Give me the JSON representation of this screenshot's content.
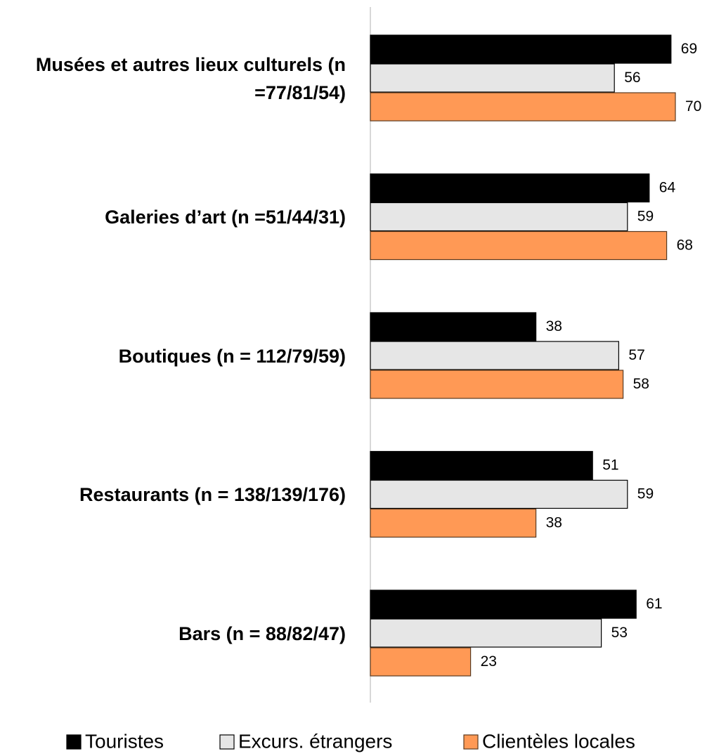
{
  "chart_data": {
    "type": "hbar",
    "categories": [
      "Musées et autres lieux culturels (n =77/81/54)",
      "Galeries d’art (n =51/44/31)",
      "Boutiques (n = 112/79/59)",
      "Restaurants (n = 138/139/176)",
      "Bars (n = 88/82/47)"
    ],
    "series": [
      {
        "name": "Touristes",
        "color": "#000000",
        "values": [
          69,
          64,
          38,
          51,
          61
        ]
      },
      {
        "name": "Excurs. étrangers",
        "color": "#e6e6e6",
        "values": [
          56,
          59,
          57,
          59,
          53
        ]
      },
      {
        "name": "Clientèles locales",
        "color": "#ff9955",
        "values": [
          70,
          68,
          58,
          38,
          23
        ]
      }
    ],
    "legend": "bottom"
  }
}
